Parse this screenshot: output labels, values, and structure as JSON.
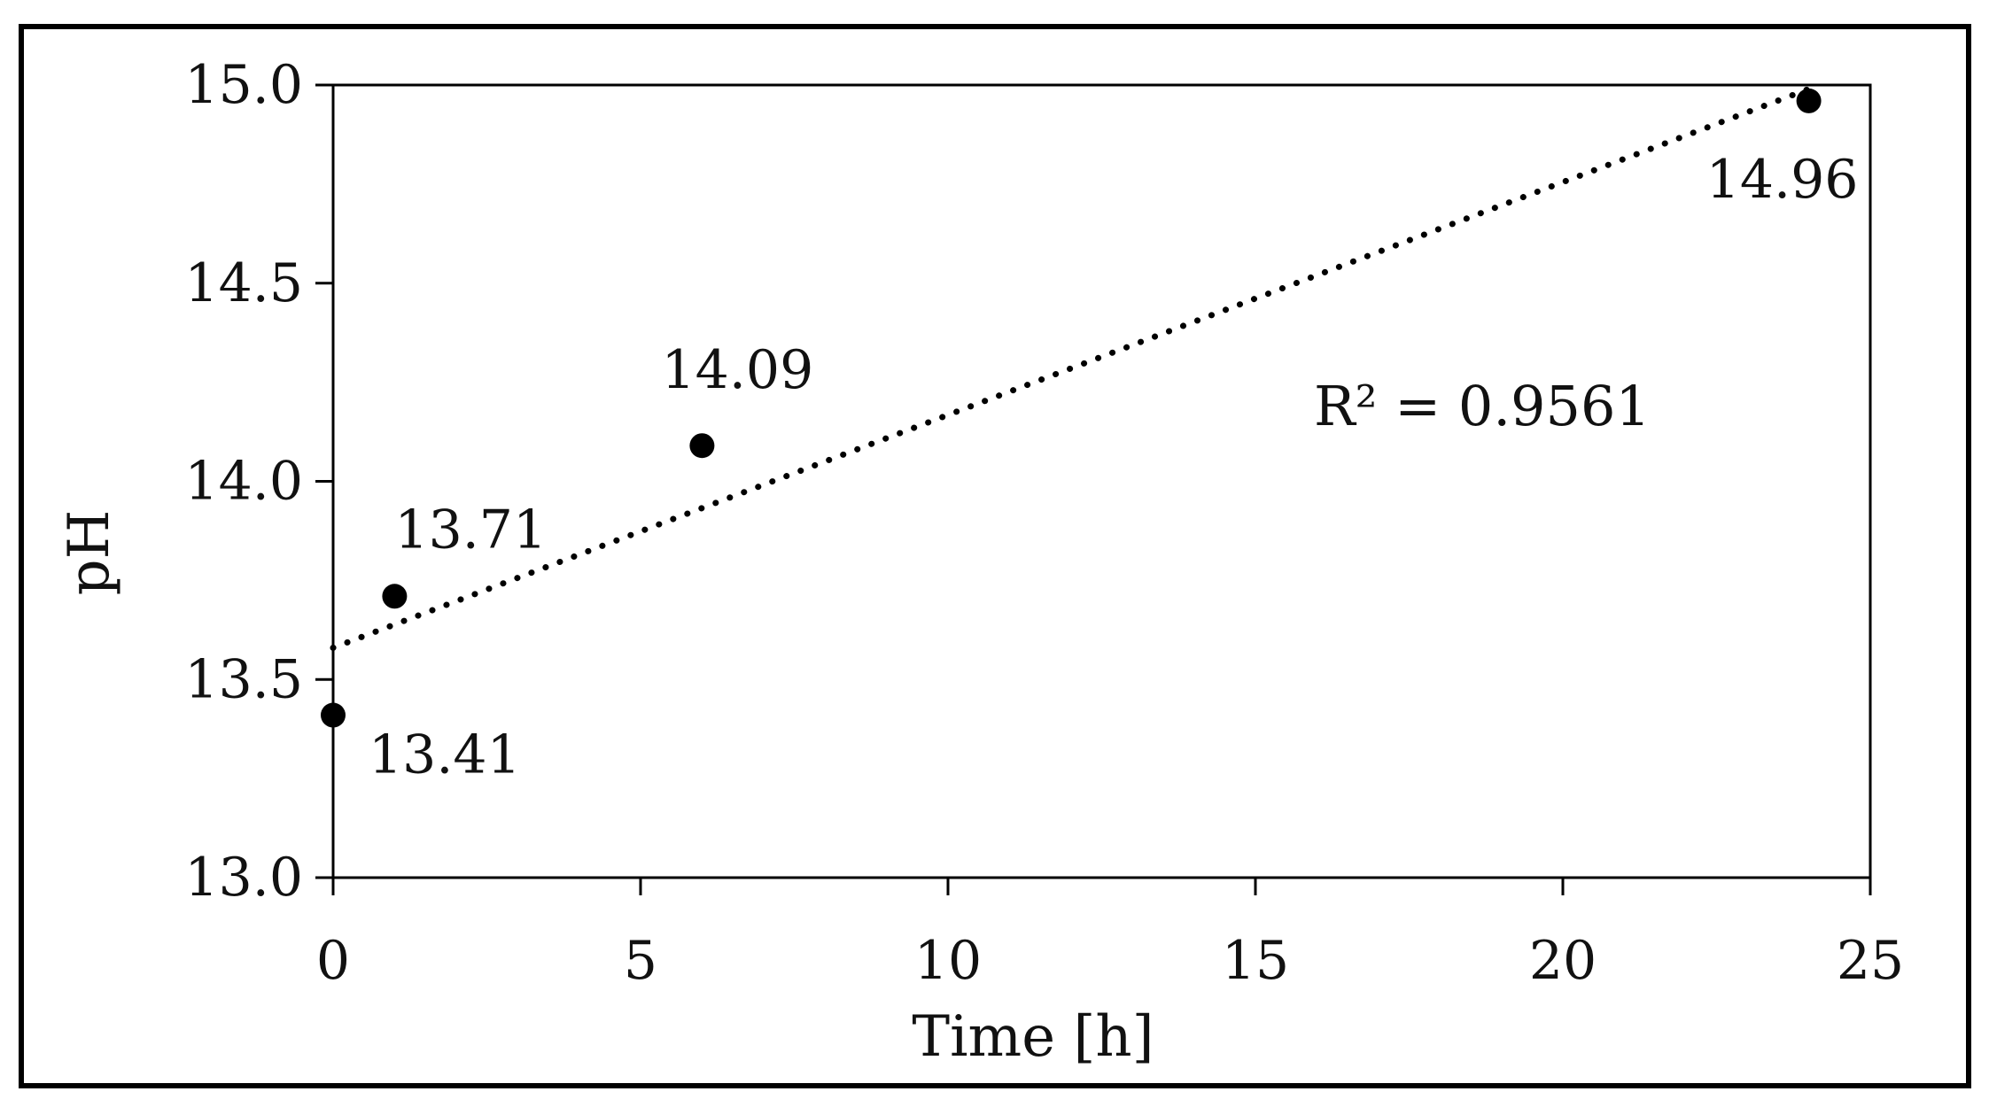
{
  "chart_data": {
    "type": "scatter",
    "title": "",
    "xlabel": "Time [h]",
    "ylabel": "pH",
    "xlim": [
      0,
      25
    ],
    "ylim": [
      13.0,
      15.0
    ],
    "xticks": [
      "0",
      "5",
      "10",
      "15",
      "20",
      "25"
    ],
    "yticks": [
      "13.0",
      "13.5",
      "14.0",
      "14.5",
      "15.0"
    ],
    "grid": false,
    "legend": "none",
    "series": [
      {
        "x": [
          0,
          1,
          6,
          24
        ],
        "y": [
          13.41,
          13.71,
          14.09,
          14.96
        ],
        "labels": [
          "13.41",
          "13.71",
          "14.09",
          "14.96"
        ],
        "color": "#000000"
      }
    ],
    "trendline": {
      "style": "dotted",
      "color": "#000000",
      "x": [
        0,
        24
      ],
      "y": [
        13.58,
        14.99
      ]
    },
    "annotations": [
      {
        "text": "R² = 0.9561"
      }
    ]
  }
}
